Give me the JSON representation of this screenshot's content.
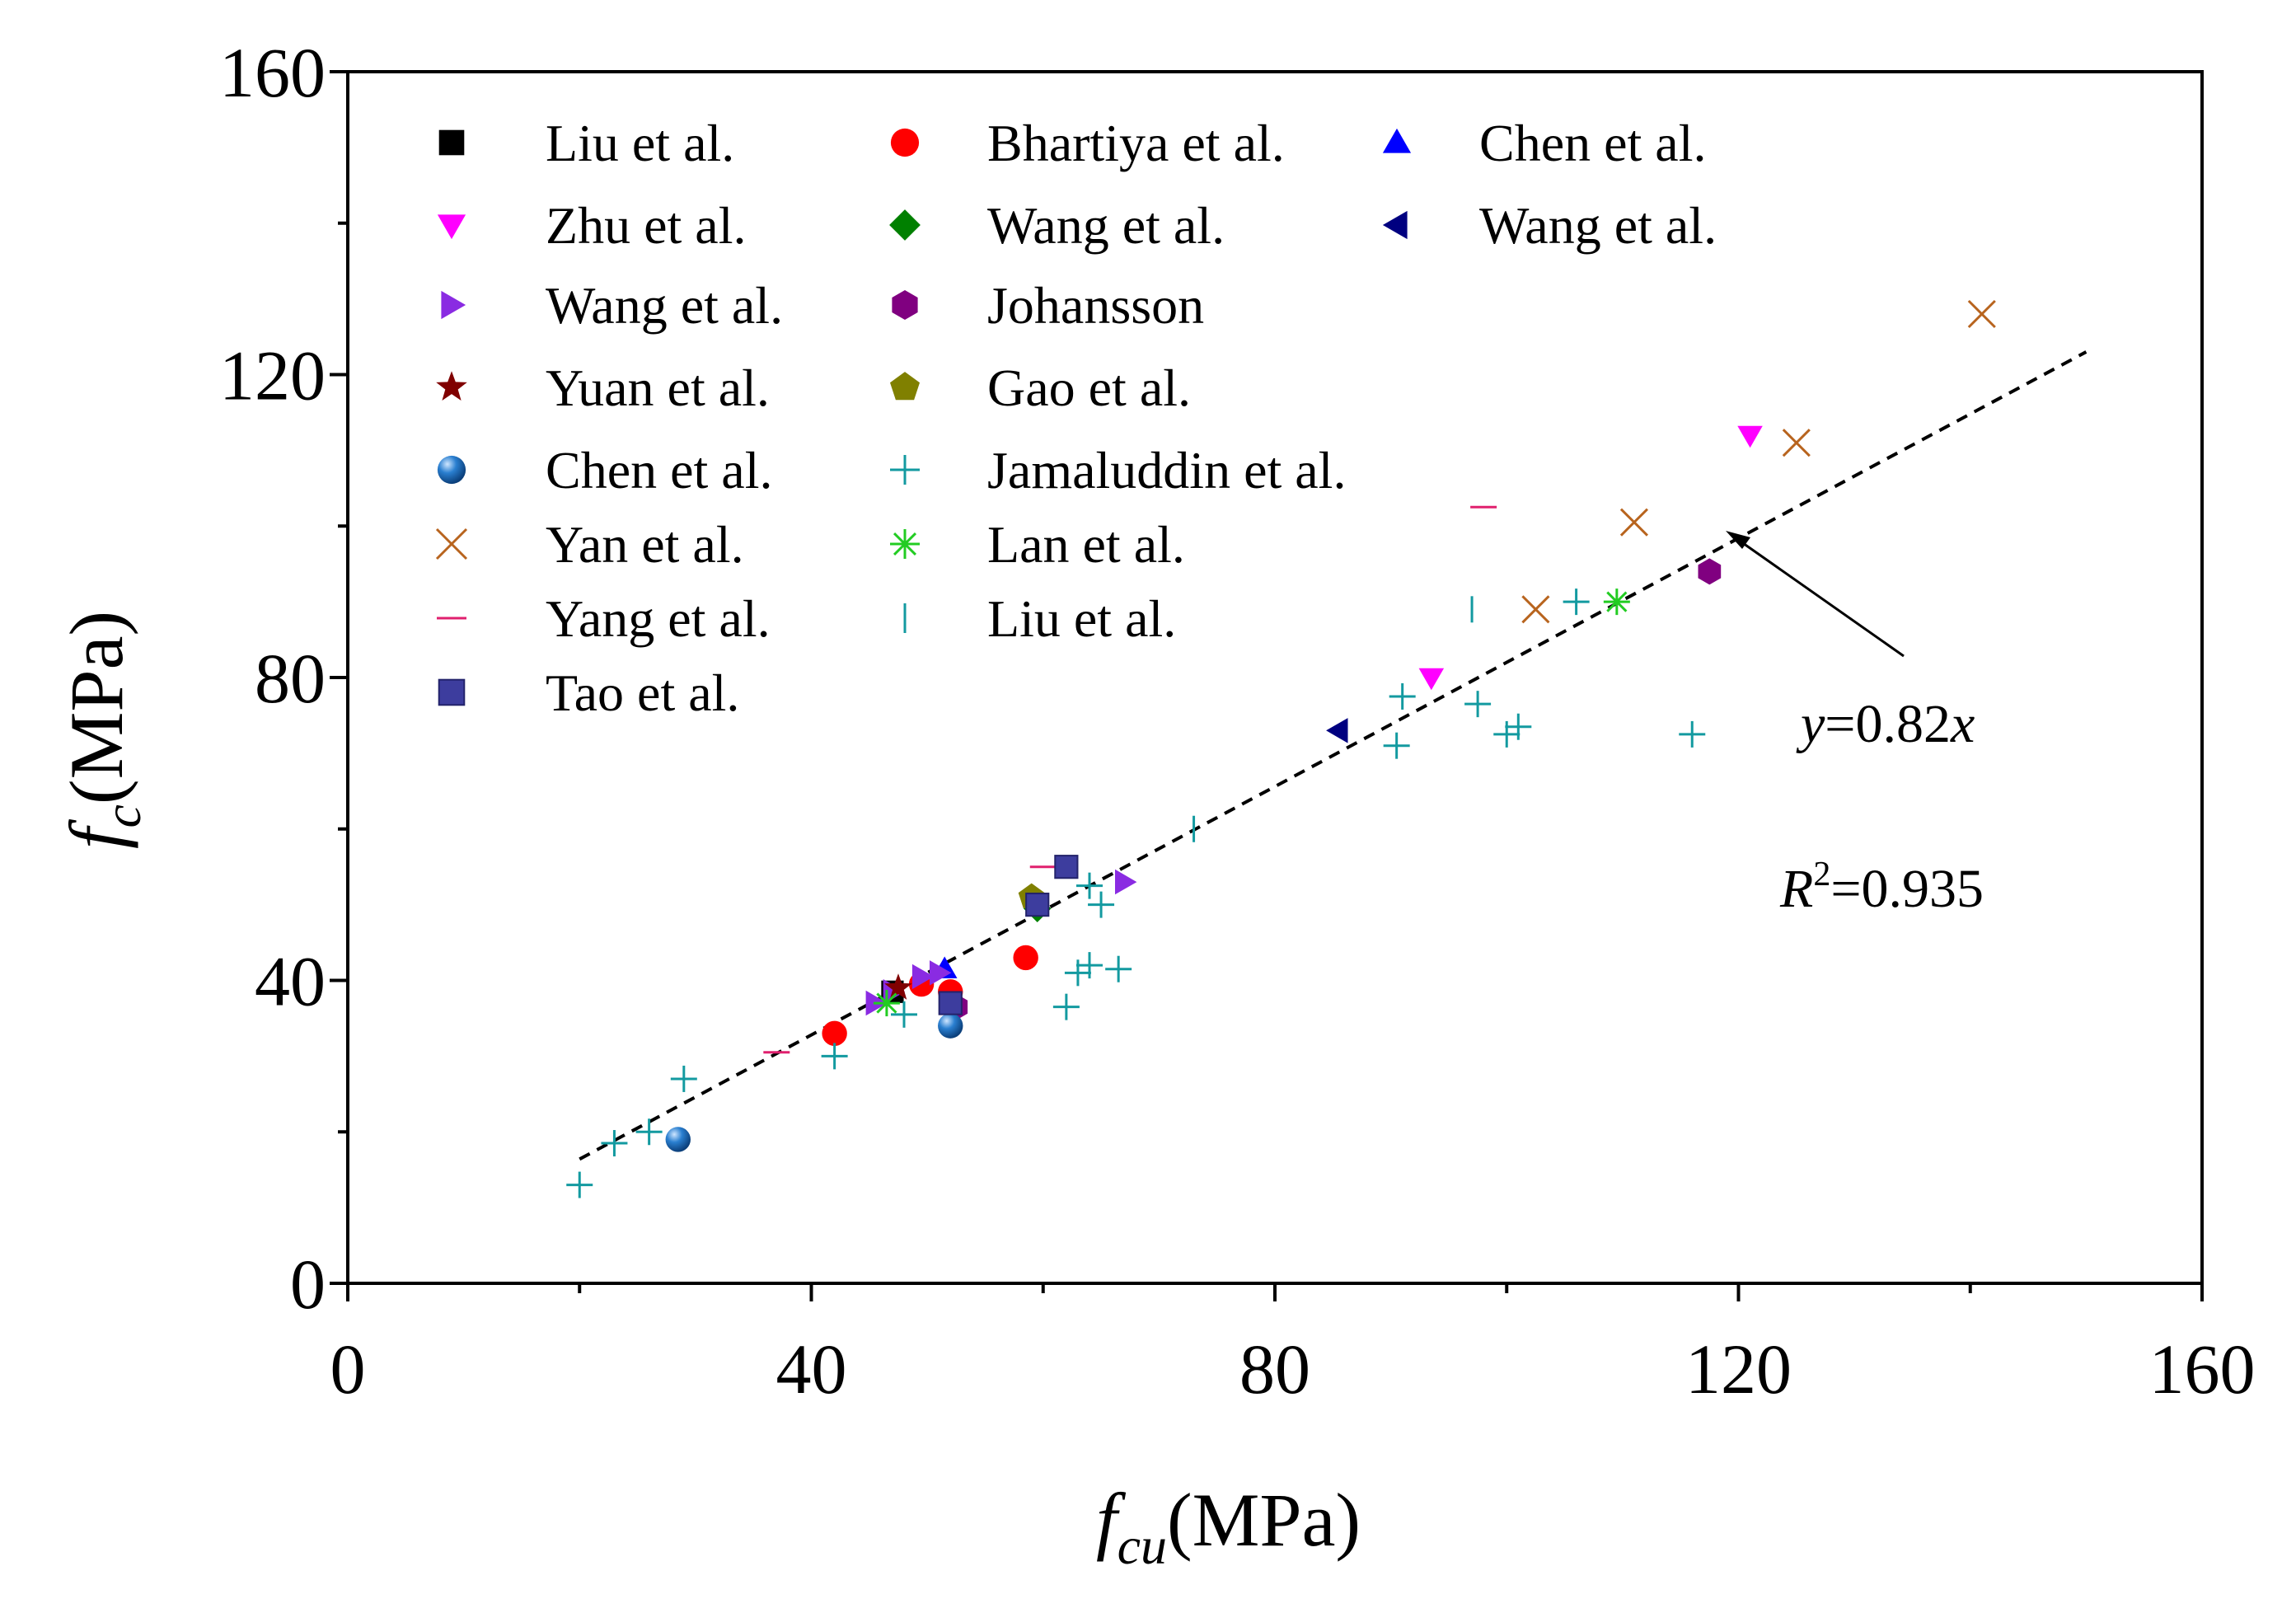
{
  "chart_data": {
    "type": "scatter",
    "title": "",
    "xlabel": {
      "main": "f",
      "sub": "cu",
      "unit": "(MPa)"
    },
    "ylabel": {
      "main": "f",
      "sub": "c",
      "unit": "(MPa)"
    },
    "xlim": [
      0,
      160
    ],
    "ylim": [
      0,
      160
    ],
    "xticks": [
      0,
      40,
      80,
      120,
      160
    ],
    "yticks": [
      0,
      40,
      80,
      120,
      160
    ],
    "grid": false,
    "legend_position": "top-left",
    "fit": {
      "slope": 0.82,
      "x_range": [
        20,
        150
      ],
      "equation": {
        "y": "y",
        "eq": "=0.82",
        "x": "x"
      },
      "r2": {
        "R": "R",
        "sup": "2",
        "val": "=0.935"
      }
    },
    "series": [
      {
        "name": "Liu et al.",
        "marker": "square",
        "color": "#000000",
        "points": [
          [
            47,
            38.5
          ]
        ]
      },
      {
        "name": "Bhartiya et al.",
        "marker": "circle",
        "color": "#ff0000",
        "points": [
          [
            42,
            33
          ],
          [
            49.5,
            39.5
          ],
          [
            52,
            38.5
          ],
          [
            58.5,
            43
          ]
        ]
      },
      {
        "name": "Chen et al.",
        "marker": "triangle-up",
        "color": "#0000ff",
        "points": [
          [
            51.5,
            41.5
          ]
        ]
      },
      {
        "name": "Zhu et al.",
        "marker": "triangle-down",
        "color": "#ff00ff",
        "points": [
          [
            93.5,
            80
          ],
          [
            121,
            112
          ]
        ]
      },
      {
        "name": "Wang et al.",
        "marker": "diamond",
        "color": "#008000",
        "points": [
          [
            59.5,
            49.5
          ]
        ]
      },
      {
        "name": "Wang et al.",
        "marker": "triangle-left",
        "color": "#000080",
        "points": [
          [
            85.5,
            73
          ]
        ]
      },
      {
        "name": "Wang et al.",
        "marker": "triangle-right",
        "color": "#8a2be2",
        "points": [
          [
            45.5,
            37
          ],
          [
            47,
            38.5
          ],
          [
            49.5,
            40.5
          ],
          [
            51,
            41
          ],
          [
            67,
            53
          ]
        ]
      },
      {
        "name": "Johansson",
        "marker": "hexagon",
        "color": "#800080",
        "points": [
          [
            52.5,
            36.5
          ],
          [
            117.5,
            94
          ]
        ]
      },
      {
        "name": "Yuan et al.",
        "marker": "star",
        "color": "#800000",
        "points": [
          [
            47.5,
            39
          ]
        ]
      },
      {
        "name": "Gao et al.",
        "marker": "pentagon",
        "color": "#808000",
        "points": [
          [
            59,
            51
          ]
        ]
      },
      {
        "name": "Chen et al.",
        "marker": "ball",
        "color": "#1f6fb5",
        "points": [
          [
            28.5,
            19
          ],
          [
            52,
            34
          ]
        ]
      },
      {
        "name": "Jamaluddin et al.",
        "marker": "plus",
        "color": "#139aa0",
        "points": [
          [
            20,
            13
          ],
          [
            23,
            18.5
          ],
          [
            26,
            20
          ],
          [
            29,
            27
          ],
          [
            42,
            30
          ],
          [
            48,
            35.5
          ],
          [
            62,
            36.5
          ],
          [
            63,
            41
          ],
          [
            64,
            42
          ],
          [
            66.5,
            41.5
          ],
          [
            64,
            52.5
          ],
          [
            65,
            50
          ],
          [
            90.5,
            71
          ],
          [
            91,
            77.5
          ],
          [
            97.5,
            76.5
          ],
          [
            100,
            72.5
          ],
          [
            101,
            73.5
          ],
          [
            106,
            90
          ],
          [
            116,
            72.5
          ]
        ]
      },
      {
        "name": "Yan et al.",
        "marker": "x",
        "color": "#b8641e",
        "points": [
          [
            102.5,
            89
          ],
          [
            111,
            100.5
          ],
          [
            125,
            111
          ],
          [
            141,
            128
          ]
        ]
      },
      {
        "name": "Lan et al.",
        "marker": "asterisk",
        "color": "#22cc22",
        "points": [
          [
            46.5,
            37
          ],
          [
            109.5,
            90
          ]
        ]
      },
      {
        "name": "Yang et al.",
        "marker": "hline",
        "color": "#e0206e",
        "points": [
          [
            37,
            30.5
          ],
          [
            60,
            55
          ],
          [
            98,
            102.5
          ]
        ]
      },
      {
        "name": "Liu et al.",
        "marker": "vline",
        "color": "#139aa0",
        "points": [
          [
            73,
            60
          ],
          [
            97,
            89
          ]
        ]
      },
      {
        "name": "Tao et al.",
        "marker": "square-shaded",
        "color": "#3d3d9e",
        "points": [
          [
            52,
            37
          ],
          [
            59.5,
            50
          ],
          [
            62,
            55
          ]
        ]
      }
    ]
  }
}
